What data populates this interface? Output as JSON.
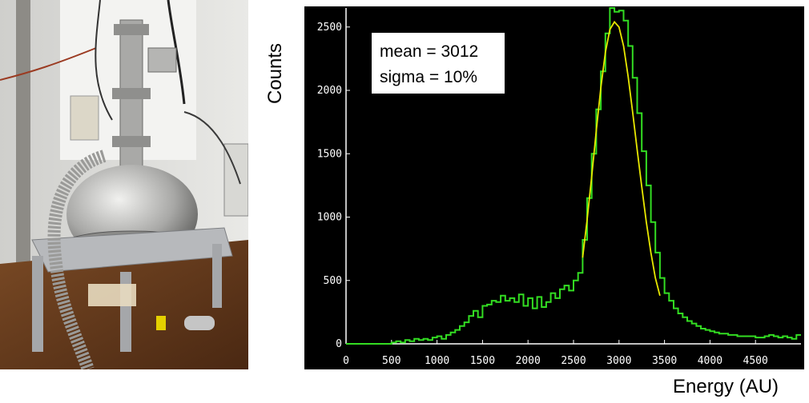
{
  "chart_data": {
    "type": "line",
    "title": "",
    "xlabel": "Energy (AU)",
    "ylabel": "Counts",
    "xlim": [
      0,
      5000
    ],
    "ylim": [
      0,
      2650
    ],
    "grid": false,
    "x_ticks": [
      "0",
      "500",
      "1000",
      "1500",
      "2000",
      "2500",
      "3000",
      "3500",
      "4000",
      "4500"
    ],
    "y_ticks": [
      "0",
      "500",
      "1000",
      "1500",
      "2000",
      "2500"
    ],
    "annotation_lines": [
      "mean = 3012",
      "sigma = 10%"
    ],
    "series": [
      {
        "kind": "histogram",
        "color": "#33dd22",
        "x": [
          0,
          50,
          100,
          150,
          200,
          250,
          300,
          350,
          400,
          450,
          500,
          550,
          600,
          650,
          700,
          750,
          800,
          850,
          900,
          950,
          1000,
          1050,
          1100,
          1150,
          1200,
          1250,
          1300,
          1350,
          1400,
          1450,
          1500,
          1550,
          1600,
          1650,
          1700,
          1750,
          1800,
          1850,
          1900,
          1950,
          2000,
          2050,
          2100,
          2150,
          2200,
          2250,
          2300,
          2350,
          2400,
          2450,
          2500,
          2550,
          2600,
          2650,
          2700,
          2750,
          2800,
          2850,
          2900,
          2950,
          3000,
          3050,
          3100,
          3150,
          3200,
          3250,
          3300,
          3350,
          3400,
          3450,
          3500,
          3550,
          3600,
          3650,
          3700,
          3750,
          3800,
          3850,
          3900,
          3950,
          4000,
          4050,
          4100,
          4150,
          4200,
          4250,
          4300,
          4350,
          4400,
          4450,
          4500,
          4550,
          4600,
          4650,
          4700,
          4750,
          4800,
          4850,
          4900,
          4950
        ],
        "values": [
          0,
          0,
          0,
          0,
          0,
          0,
          0,
          0,
          0,
          0,
          10,
          20,
          10,
          30,
          20,
          40,
          30,
          40,
          30,
          50,
          60,
          40,
          70,
          90,
          110,
          140,
          170,
          220,
          260,
          210,
          300,
          310,
          340,
          330,
          380,
          340,
          360,
          330,
          390,
          300,
          360,
          280,
          370,
          290,
          330,
          400,
          360,
          430,
          460,
          420,
          500,
          560,
          820,
          1150,
          1500,
          1850,
          2150,
          2450,
          2650,
          2620,
          2630,
          2550,
          2350,
          2100,
          1820,
          1520,
          1250,
          960,
          720,
          520,
          400,
          340,
          280,
          240,
          210,
          180,
          160,
          140,
          120,
          110,
          100,
          90,
          80,
          80,
          70,
          70,
          60,
          60,
          60,
          60,
          50,
          50,
          60,
          70,
          60,
          50,
          60,
          50,
          40,
          70
        ]
      },
      {
        "kind": "fit",
        "color": "#e8e800",
        "x": [
          2600,
          2650,
          2700,
          2750,
          2800,
          2850,
          2900,
          2950,
          3000,
          3050,
          3100,
          3150,
          3200,
          3250,
          3300,
          3350,
          3400,
          3450
        ],
        "values": [
          680,
          980,
          1320,
          1680,
          2020,
          2300,
          2480,
          2540,
          2500,
          2350,
          2110,
          1830,
          1530,
          1240,
          960,
          720,
          520,
          380
        ]
      }
    ]
  }
}
